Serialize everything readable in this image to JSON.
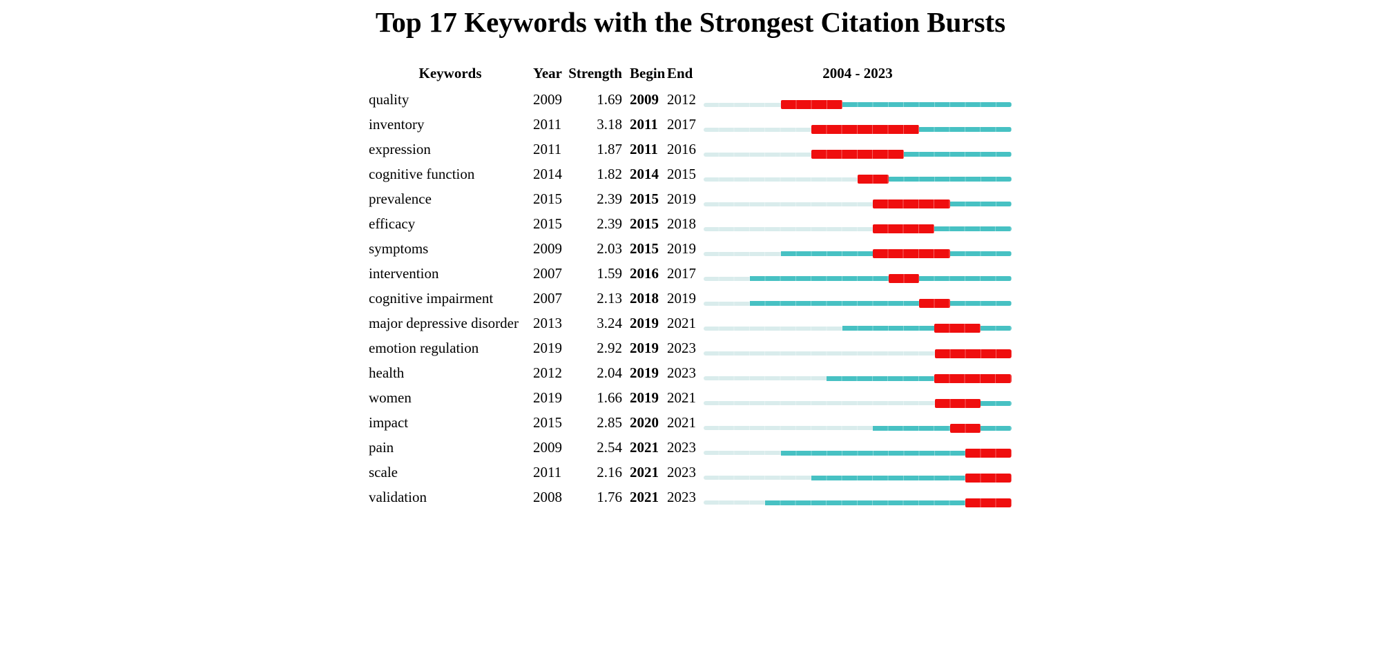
{
  "title": "Top 17 Keywords with the Strongest Citation Bursts",
  "header": {
    "keywords": "Keywords",
    "year": "Year",
    "strength": "Strength",
    "begin": "Begin",
    "end": "End",
    "timeline": "2004 - 2023"
  },
  "colors": {
    "before_first_appearance": "#d9ecec",
    "active_period": "#47c1c3",
    "burst_period": "#ef0e0e",
    "text": "#000000",
    "background": "#ffffff"
  },
  "chart_data": {
    "type": "table",
    "title": "Top 17 Keywords with the Strongest Citation Bursts",
    "columns": [
      "Keywords",
      "Year",
      "Strength",
      "Begin",
      "End",
      "2004 - 2023"
    ],
    "timeline_start": 2004,
    "timeline_end": 2023,
    "rows": [
      {
        "keyword": "quality",
        "year": 2009,
        "strength": "1.69",
        "begin": 2009,
        "end": 2012
      },
      {
        "keyword": "inventory",
        "year": 2011,
        "strength": "3.18",
        "begin": 2011,
        "end": 2017
      },
      {
        "keyword": "expression",
        "year": 2011,
        "strength": "1.87",
        "begin": 2011,
        "end": 2016
      },
      {
        "keyword": "cognitive function",
        "year": 2014,
        "strength": "1.82",
        "begin": 2014,
        "end": 2015
      },
      {
        "keyword": "prevalence",
        "year": 2015,
        "strength": "2.39",
        "begin": 2015,
        "end": 2019
      },
      {
        "keyword": "efficacy",
        "year": 2015,
        "strength": "2.39",
        "begin": 2015,
        "end": 2018
      },
      {
        "keyword": "symptoms",
        "year": 2009,
        "strength": "2.03",
        "begin": 2015,
        "end": 2019
      },
      {
        "keyword": "intervention",
        "year": 2007,
        "strength": "1.59",
        "begin": 2016,
        "end": 2017
      },
      {
        "keyword": "cognitive impairment",
        "year": 2007,
        "strength": "2.13",
        "begin": 2018,
        "end": 2019
      },
      {
        "keyword": "major depressive disorder",
        "year": 2013,
        "strength": "3.24",
        "begin": 2019,
        "end": 2021
      },
      {
        "keyword": "emotion regulation",
        "year": 2019,
        "strength": "2.92",
        "begin": 2019,
        "end": 2023
      },
      {
        "keyword": "health",
        "year": 2012,
        "strength": "2.04",
        "begin": 2019,
        "end": 2023
      },
      {
        "keyword": "women",
        "year": 2019,
        "strength": "1.66",
        "begin": 2019,
        "end": 2021
      },
      {
        "keyword": "impact",
        "year": 2015,
        "strength": "2.85",
        "begin": 2020,
        "end": 2021
      },
      {
        "keyword": "pain",
        "year": 2009,
        "strength": "2.54",
        "begin": 2021,
        "end": 2023
      },
      {
        "keyword": "scale",
        "year": 2011,
        "strength": "2.16",
        "begin": 2021,
        "end": 2023
      },
      {
        "keyword": "validation",
        "year": 2008,
        "strength": "1.76",
        "begin": 2021,
        "end": 2023
      }
    ]
  }
}
